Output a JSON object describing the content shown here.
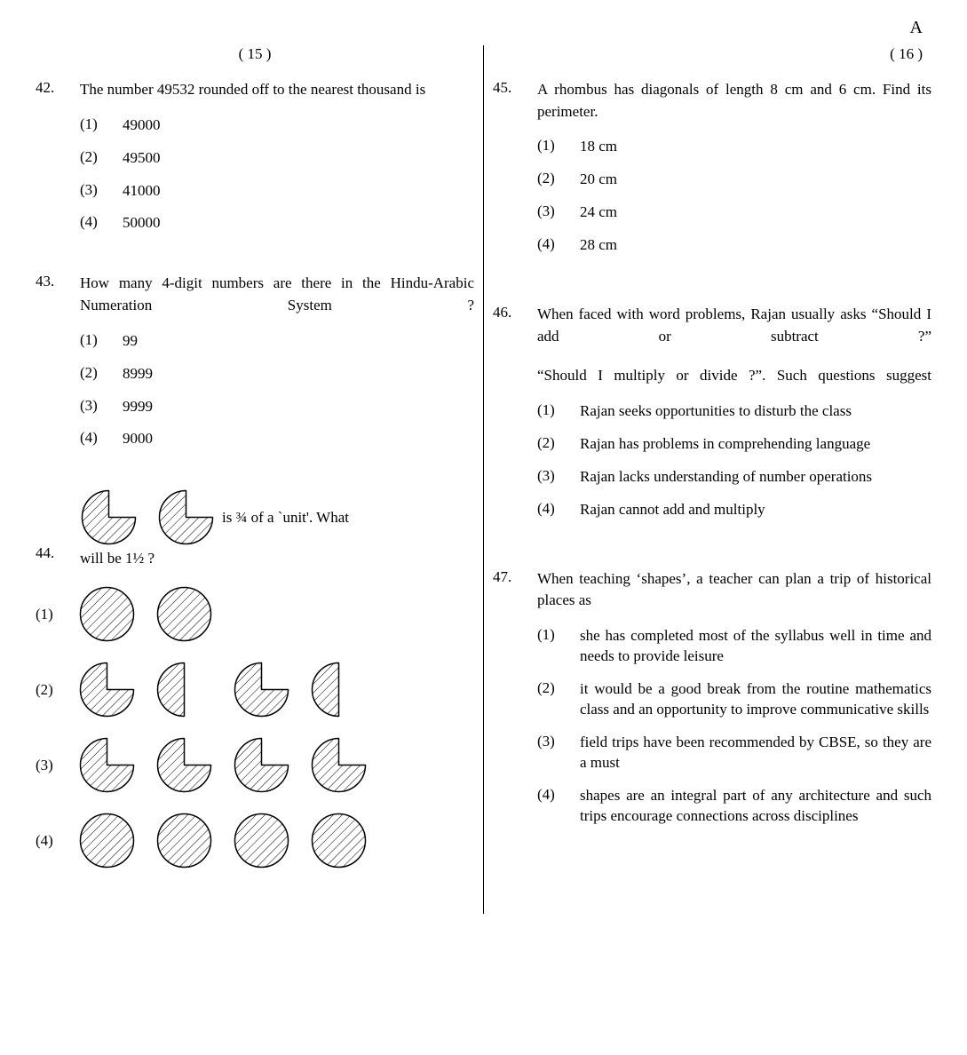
{
  "header_letter": "A",
  "page_left": "( 15 )",
  "page_right": "( 16 )",
  "colors": {
    "text": "#000000",
    "bg": "#ffffff",
    "stroke": "#000000",
    "hatch": "#000000"
  },
  "pie_style": {
    "radius": 30,
    "stroke_width": 1.5,
    "hatch_spacing": 7,
    "hatch_angle_deg": 45
  },
  "q42": {
    "num": "42.",
    "text": "The number 49532 rounded off to the nearest thousand is",
    "options": [
      {
        "n": "(1)",
        "t": "49000"
      },
      {
        "n": "(2)",
        "t": "49500"
      },
      {
        "n": "(3)",
        "t": "41000"
      },
      {
        "n": "(4)",
        "t": "50000"
      }
    ]
  },
  "q43": {
    "num": "43.",
    "text": "How many 4-digit numbers are there in the Hindu-Arabic Numeration System ?",
    "options": [
      {
        "n": "(1)",
        "t": "99"
      },
      {
        "n": "(2)",
        "t": "8999"
      },
      {
        "n": "(3)",
        "t": "9999"
      },
      {
        "n": "(4)",
        "t": "9000"
      }
    ]
  },
  "q44": {
    "num": "44.",
    "text_mid": "is ¾ of a `unit'. What",
    "text_tail": "will be 1½ ?",
    "stem_shapes": [
      {
        "type": "three_quarter"
      },
      {
        "type": "three_quarter"
      }
    ],
    "options": [
      {
        "n": "(1)",
        "shapes": [
          {
            "type": "full"
          },
          {
            "type": "full"
          }
        ]
      },
      {
        "n": "(2)",
        "shapes": [
          {
            "type": "three_quarter"
          },
          {
            "type": "half"
          },
          {
            "type": "three_quarter"
          },
          {
            "type": "half"
          }
        ]
      },
      {
        "n": "(3)",
        "shapes": [
          {
            "type": "three_quarter"
          },
          {
            "type": "three_quarter"
          },
          {
            "type": "three_quarter"
          },
          {
            "type": "three_quarter"
          }
        ]
      },
      {
        "n": "(4)",
        "shapes": [
          {
            "type": "full"
          },
          {
            "type": "full"
          },
          {
            "type": "full"
          },
          {
            "type": "full"
          }
        ]
      }
    ]
  },
  "q45": {
    "num": "45.",
    "text": "A rhombus has diagonals of length 8 cm and 6 cm. Find its perimeter.",
    "options": [
      {
        "n": "(1)",
        "t": "18 cm"
      },
      {
        "n": "(2)",
        "t": "20 cm"
      },
      {
        "n": "(3)",
        "t": "24 cm"
      },
      {
        "n": "(4)",
        "t": "28 cm"
      }
    ]
  },
  "q46": {
    "num": "46.",
    "text1": "When faced with word problems, Rajan usually asks “Should I add or subtract ?”",
    "text2": "“Should I multiply or divide ?”. Such questions suggest",
    "options": [
      {
        "n": "(1)",
        "t": "Rajan seeks opportunities to disturb the class"
      },
      {
        "n": "(2)",
        "t": "Rajan has problems in comprehending language"
      },
      {
        "n": "(3)",
        "t": "Rajan lacks understanding of number operations"
      },
      {
        "n": "(4)",
        "t": "Rajan cannot add and multiply"
      }
    ]
  },
  "q47": {
    "num": "47.",
    "text": "When teaching ‘shapes’, a teacher can plan a trip of historical places as",
    "options": [
      {
        "n": "(1)",
        "t": "she has completed most of the syllabus well in time and needs to provide leisure"
      },
      {
        "n": "(2)",
        "t": "it would be a good break from the routine mathematics class and an opportunity to improve communicative skills"
      },
      {
        "n": "(3)",
        "t": "field trips have been recommended by CBSE, so they are a must"
      },
      {
        "n": "(4)",
        "t": "shapes are an integral part of any architecture and such trips encourage connections across disciplines"
      }
    ]
  }
}
